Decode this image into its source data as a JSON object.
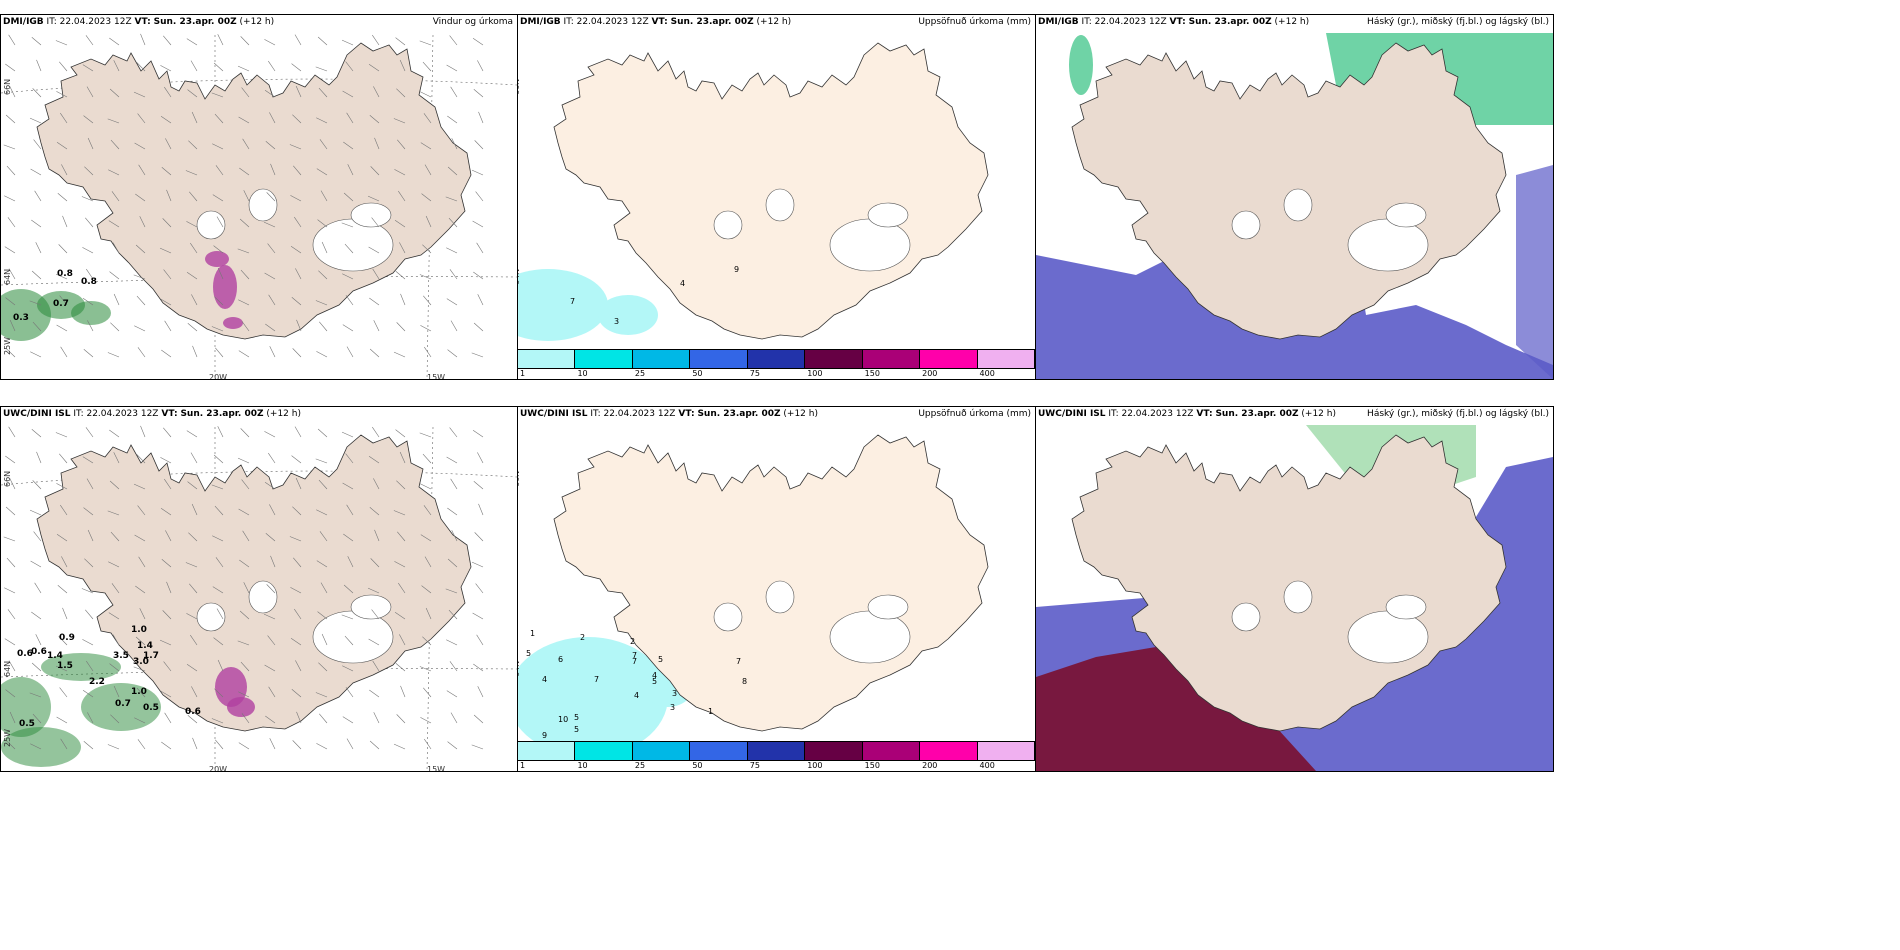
{
  "panels": [
    {
      "model": "DMI/IGB",
      "it": "IT: 22.04.2023 12Z",
      "vt_label": "VT:",
      "vt": "Sun. 23.apr. 00Z",
      "lead": "(+12 h)",
      "field": "Vindur og úrkoma"
    },
    {
      "model": "DMI/IGB",
      "it": "IT: 22.04.2023 12Z",
      "vt_label": "VT:",
      "vt": "Sun. 23.apr. 00Z",
      "lead": "(+12 h)",
      "field": "Uppsöfnuð úrkoma (mm)"
    },
    {
      "model": "DMI/IGB",
      "it": "IT: 22.04.2023 12Z",
      "vt_label": "VT:",
      "vt": "Sun. 23.apr. 00Z",
      "lead": "(+12 h)",
      "field": "Háský (gr.), miðský (fj.bl.) og lágský (bl.)"
    },
    {
      "model": "UWC/DINI ISL",
      "it": "IT: 22.04.2023 12Z",
      "vt_label": "VT:",
      "vt": "Sun. 23.apr. 00Z",
      "lead": "(+12 h)",
      "field": ""
    },
    {
      "model": "UWC/DINI ISL",
      "it": "IT: 22.04.2023 12Z",
      "vt_label": "VT:",
      "vt": "Sun. 23.apr. 00Z",
      "lead": "(+12 h)",
      "field": "Uppsöfnuð úrkoma (mm)"
    },
    {
      "model": "UWC/DINI ISL",
      "it": "IT: 22.04.2023 12Z",
      "vt_label": "VT:",
      "vt": "Sun. 23.apr. 00Z",
      "lead": "(+12 h)",
      "field": "Háský (gr.), miðský (fj.bl.) og lágský (bl.)"
    }
  ],
  "axis_labels": {
    "lat66": "66N",
    "lat64": "64N",
    "lon25": "25W",
    "lon20": "20W",
    "lon15": "15W"
  },
  "colorbar": {
    "ticks": [
      "1",
      "10",
      "25",
      "50",
      "75",
      "100",
      "150",
      "200",
      "400"
    ],
    "colors": [
      "#b3f7f7",
      "#00e5e5",
      "#00b8e6",
      "#3366e6",
      "#2233aa",
      "#660044",
      "#aa0077",
      "#ff00aa",
      "#f0b0f0"
    ]
  },
  "wind_precip_values_top": [
    "0.8",
    "0.8",
    "0.7",
    "0.3"
  ],
  "wind_precip_values_bottom": [
    "0.9",
    "0.6",
    "0.6",
    "1.4",
    "1.5",
    "3.5",
    "3.0",
    "1.7",
    "1.4",
    "1.0",
    "2.2",
    "1.0",
    "0.7",
    "0.5",
    "0.6",
    "0.5"
  ],
  "acc_values_top": [
    "7",
    "3",
    "4",
    "9"
  ],
  "acc_values_bottom": [
    "1",
    "2",
    "5",
    "6",
    "2",
    "7",
    "4",
    "7",
    "7",
    "5",
    "4",
    "3",
    "4",
    "5",
    "10",
    "5",
    "9",
    "5",
    "3",
    "1",
    "7",
    "8"
  ],
  "colors": {
    "land": "#eadbd0",
    "land_light": "#fcefe2",
    "glacier": "#ffffff",
    "precip_green": "#2a8a3a",
    "cloud_high": "#32c080",
    "cloud_mid": "#5b5bc8",
    "cloud_low": "#7a1030",
    "acc_light": "#b3f7f7"
  }
}
